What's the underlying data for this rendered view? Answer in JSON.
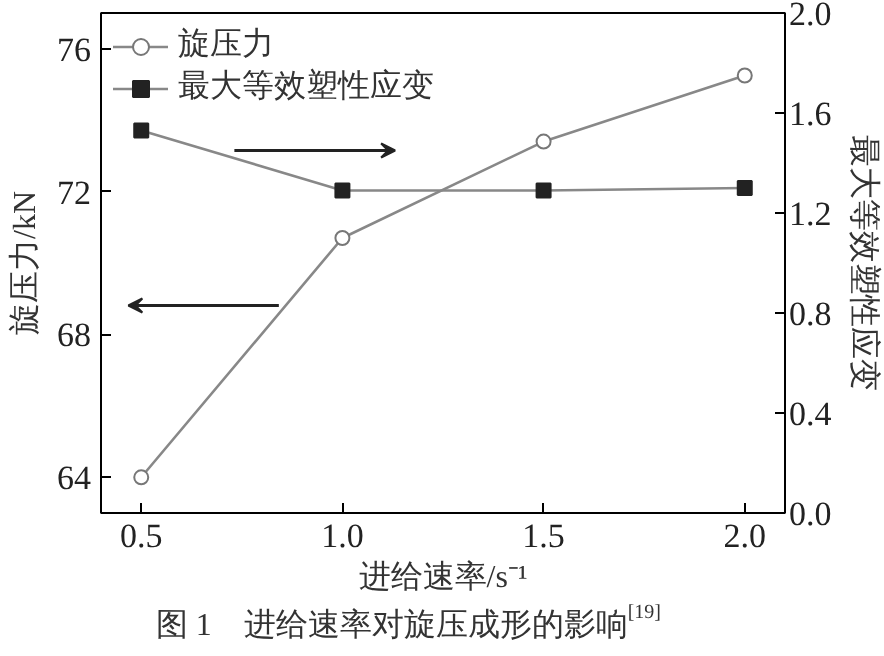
{
  "chart_data": {
    "type": "line",
    "xlabel": "进给速率/s⁻¹",
    "ylabel": "旋压力/kN",
    "y2label": "最大等效塑性应变",
    "annotations": [
      "图 1　进给速率对旋压成形的影响$^{[19]}$"
    ],
    "x": [
      0.5,
      1.0,
      1.5,
      2.0
    ],
    "series": [
      {
        "name": "旋压力",
        "color": "#777777",
        "values": [
          64.0,
          70.7,
          73.4,
          75.25
        ],
        "marker": "circle"
      },
      {
        "name": "最大等效塑性应变",
        "color": "#222222",
        "values": [
          1.53,
          1.29,
          1.29,
          1.3
        ],
        "axis": "y2",
        "marker": "square"
      }
    ],
    "xlim": [
      0.4,
      2.1
    ],
    "xticks": [
      {
        "value": 0.5,
        "label": "0.5"
      },
      {
        "value": 1.0,
        "label": "1.0"
      },
      {
        "value": 1.5,
        "label": "1.5"
      },
      {
        "value": 2.0,
        "label": "2.0"
      }
    ],
    "ylim": [
      63,
      77
    ],
    "yticks": [
      64,
      68,
      72,
      76
    ],
    "y2lim": [
      0,
      2.0
    ],
    "y2ticks": [
      {
        "value": 0,
        "label": "0.0"
      },
      {
        "value": 0.4,
        "label": "0.4"
      },
      {
        "value": 0.8,
        "label": "0.8"
      },
      {
        "value": 1.2,
        "label": "1.2"
      },
      {
        "value": 1.6,
        "label": "1.6"
      },
      {
        "value": 2.0,
        "label": "2.0"
      }
    ],
    "legend": "top left",
    "grid": false,
    "line_style": "solid"
  }
}
